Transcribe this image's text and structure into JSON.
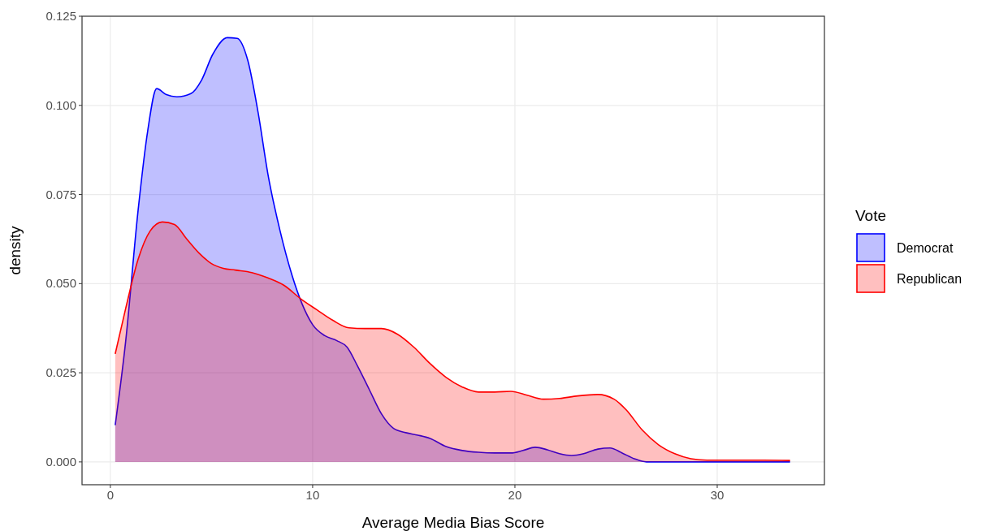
{
  "chart_data": {
    "type": "area",
    "xlabel": "Average Media Bias Score",
    "ylabel": "density",
    "legend_title": "Vote",
    "legend": "right",
    "grid": true,
    "xlim": [
      -1.4,
      35.3
    ],
    "xticks": [
      0,
      10,
      20,
      30
    ],
    "ylim": [
      -0.0064,
      0.125
    ],
    "yticks": [
      {
        "value": 0,
        "label": "0.000"
      },
      {
        "value": 0.025,
        "label": "0.025"
      },
      {
        "value": 0.05,
        "label": "0.050"
      },
      {
        "value": 0.075,
        "label": "0.075"
      },
      {
        "value": 0.1,
        "label": "0.100"
      },
      {
        "value": 0.125,
        "label": "0.125"
      }
    ],
    "series": [
      {
        "name": "Democrat",
        "color": "#0000ff",
        "x": [
          0.24,
          0.76,
          1.37,
          1.85,
          2.29,
          2.77,
          3.29,
          3.98,
          4.5,
          5.06,
          5.78,
          6.27,
          6.79,
          7.31,
          7.79,
          8.39,
          8.99,
          9.48,
          10,
          10.6,
          11.2,
          11.7,
          12.2,
          12.8,
          13.4,
          14,
          14.6,
          15.2,
          15.8,
          16.6,
          17.4,
          18.2,
          19,
          19.8,
          20.4,
          21,
          21.6,
          22.2,
          22.8,
          23.4,
          24.1,
          24.7,
          25.3,
          25.9,
          26.5,
          28,
          30,
          33.6
        ],
        "values": [
          0.0103,
          0.034,
          0.0705,
          0.093,
          0.1047,
          0.103,
          0.1024,
          0.1033,
          0.107,
          0.1143,
          0.119,
          0.1188,
          0.1127,
          0.0978,
          0.0807,
          0.0648,
          0.0522,
          0.0443,
          0.0385,
          0.0354,
          0.034,
          0.0322,
          0.0271,
          0.0203,
          0.0135,
          0.0094,
          0.0082,
          0.0075,
          0.0066,
          0.0043,
          0.0032,
          0.0027,
          0.0025,
          0.0025,
          0.0032,
          0.0041,
          0.0034,
          0.0023,
          0.0018,
          0.0023,
          0.0036,
          0.0039,
          0.0025,
          0.0009,
          0,
          0,
          0,
          0
        ]
      },
      {
        "name": "Republican",
        "color": "#ff0000",
        "x": [
          0.24,
          0.76,
          1.37,
          1.97,
          2.57,
          3.17,
          3.78,
          4.38,
          4.98,
          5.58,
          6.18,
          6.99,
          7.79,
          8.59,
          9.4,
          10.2,
          11,
          11.8,
          12.6,
          13.4,
          14.2,
          15,
          15.8,
          16.6,
          17.4,
          18.2,
          19,
          19.8,
          20.6,
          21.4,
          22.2,
          23.1,
          24.1,
          24.9,
          25.5,
          26.3,
          27.1,
          27.9,
          28.7,
          29.5,
          30.7,
          32.3,
          33.6
        ],
        "values": [
          0.0303,
          0.0431,
          0.0568,
          0.0648,
          0.0673,
          0.0666,
          0.0625,
          0.0586,
          0.0557,
          0.0543,
          0.0538,
          0.0531,
          0.0516,
          0.0495,
          0.0458,
          0.0427,
          0.0397,
          0.0376,
          0.0374,
          0.0374,
          0.0358,
          0.0322,
          0.0276,
          0.0237,
          0.021,
          0.0196,
          0.0196,
          0.0198,
          0.0187,
          0.0176,
          0.0178,
          0.0185,
          0.0189,
          0.0176,
          0.0146,
          0.0089,
          0.0048,
          0.0023,
          0.0009,
          0.0005,
          0.0005,
          0.0005,
          0.0004
        ]
      }
    ]
  }
}
